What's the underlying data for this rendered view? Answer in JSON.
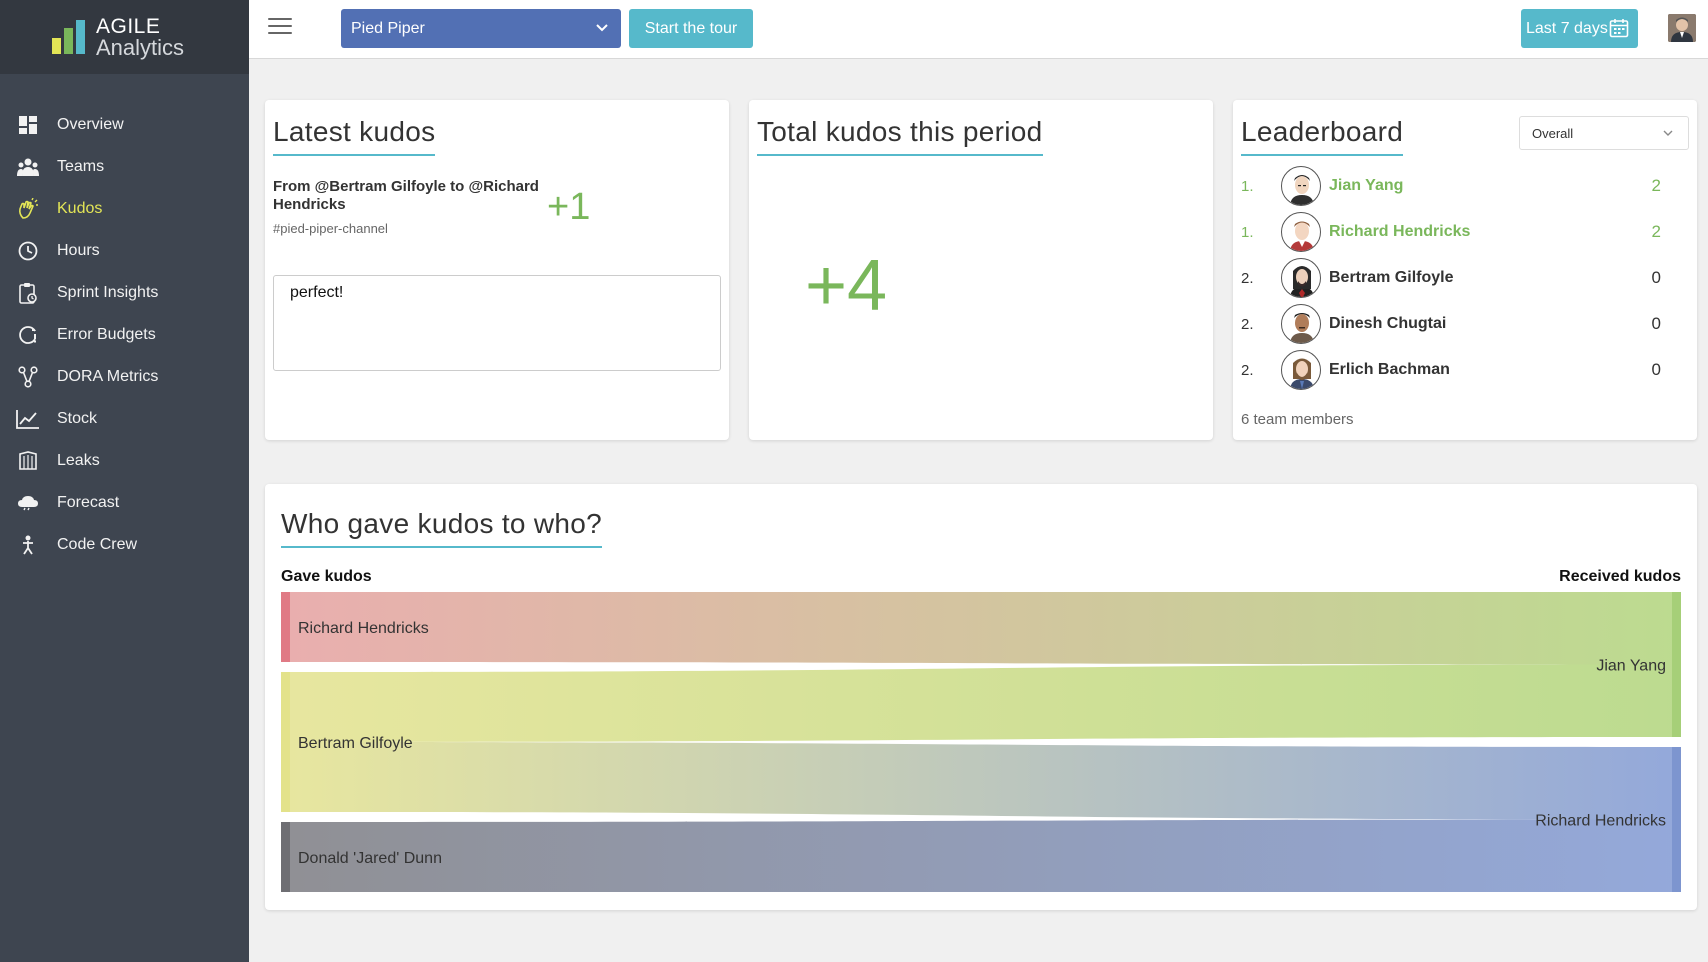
{
  "brand": {
    "title": "AGILE",
    "subtitle": "Analytics"
  },
  "nav": {
    "items": [
      {
        "label": "Overview",
        "icon": "dashboard-icon"
      },
      {
        "label": "Teams",
        "icon": "teams-icon"
      },
      {
        "label": "Kudos",
        "icon": "clap-hands-icon",
        "active": true
      },
      {
        "label": "Hours",
        "icon": "clock-icon"
      },
      {
        "label": "Sprint Insights",
        "icon": "clipboard-icon"
      },
      {
        "label": "Error Budgets",
        "icon": "error-budget-icon"
      },
      {
        "label": "DORA Metrics",
        "icon": "dora-icon"
      },
      {
        "label": "Stock",
        "icon": "chart-line-icon"
      },
      {
        "label": "Leaks",
        "icon": "leaks-icon"
      },
      {
        "label": "Forecast",
        "icon": "cloud-icon"
      },
      {
        "label": "Code Crew",
        "icon": "code-crew-icon"
      }
    ]
  },
  "topbar": {
    "org_selected": "Pied Piper",
    "tour_label": "Start the tour",
    "period_label": "Last 7 days"
  },
  "latest": {
    "title": "Latest kudos",
    "from_text": "From @Bertram Gilfoyle to @Richard Hendricks",
    "channel": "#pied-piper-channel",
    "amount": "+1",
    "message": "perfect!"
  },
  "total": {
    "title": "Total kudos this period",
    "value": "+4"
  },
  "leaderboard": {
    "title": "Leaderboard",
    "filter": "Overall",
    "rows": [
      {
        "rank": "1.",
        "name": "Jian Yang",
        "score": "2",
        "top": true
      },
      {
        "rank": "1.",
        "name": "Richard Hendricks",
        "score": "2",
        "top": true
      },
      {
        "rank": "2.",
        "name": "Bertram Gilfoyle",
        "score": "0",
        "top": false
      },
      {
        "rank": "2.",
        "name": "Dinesh Chugtai",
        "score": "0",
        "top": false
      },
      {
        "rank": "2.",
        "name": "Erlich Bachman",
        "score": "0",
        "top": false
      }
    ],
    "footer": "6 team members"
  },
  "sankey": {
    "title": "Who gave kudos to who?",
    "left_label": "Gave kudos",
    "right_label": "Received kudos",
    "sources": [
      {
        "name": "Richard Hendricks",
        "color": "#e8aaaa",
        "bar": "#e07a85"
      },
      {
        "name": "Bertram Gilfoyle",
        "color": "#e6e59a",
        "bar": "#e3e28a"
      },
      {
        "name": "Donald 'Jared' Dunn",
        "color": "#8a8a8f",
        "bar": "#6e6e73"
      }
    ],
    "targets": [
      {
        "name": "Jian Yang",
        "color": "#b9d98a",
        "bar": "#a6cf78"
      },
      {
        "name": "Richard Hendricks",
        "color": "#8ea4d8",
        "bar": "#7d95cf"
      }
    ],
    "links": [
      {
        "source": "Richard Hendricks",
        "target": "Jian Yang",
        "value": 1
      },
      {
        "source": "Bertram Gilfoyle",
        "target": "Jian Yang",
        "value": 1
      },
      {
        "source": "Bertram Gilfoyle",
        "target": "Richard Hendricks",
        "value": 1
      },
      {
        "source": "Donald 'Jared' Dunn",
        "target": "Richard Hendricks",
        "value": 1
      }
    ]
  }
}
